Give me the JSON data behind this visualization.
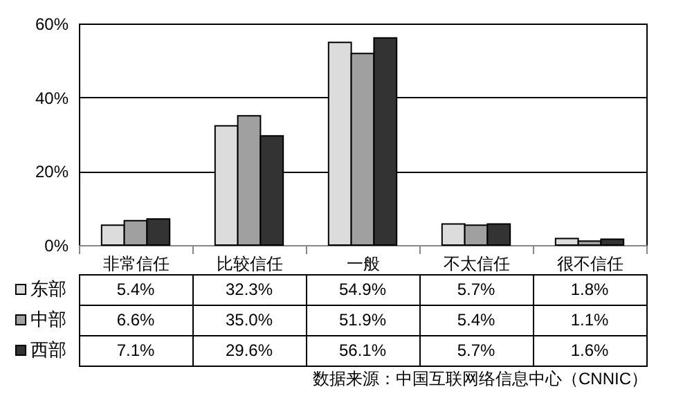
{
  "chart_data": {
    "type": "bar",
    "categories": [
      "非常信任",
      "比较信任",
      "一般",
      "不太信任",
      "很不信任"
    ],
    "series": [
      {
        "name": "东部",
        "color": "#dcdcdc",
        "values": [
          5.4,
          32.3,
          54.9,
          5.7,
          1.8
        ],
        "value_labels": [
          "5.4%",
          "32.3%",
          "54.9%",
          "5.7%",
          "1.8%"
        ]
      },
      {
        "name": "中部",
        "color": "#a0a0a0",
        "values": [
          6.6,
          35.0,
          51.9,
          5.4,
          1.1
        ],
        "value_labels": [
          "6.6%",
          "35.0%",
          "51.9%",
          "5.4%",
          "1.1%"
        ]
      },
      {
        "name": "西部",
        "color": "#333333",
        "values": [
          7.1,
          29.6,
          56.1,
          5.7,
          1.6
        ],
        "value_labels": [
          "7.1%",
          "29.6%",
          "56.1%",
          "5.7%",
          "1.6%"
        ]
      }
    ],
    "ylim": [
      0,
      60
    ],
    "yticks": [
      {
        "value": 0,
        "label": "0%"
      },
      {
        "value": 20,
        "label": "20%"
      },
      {
        "value": 40,
        "label": "40%"
      },
      {
        "value": 60,
        "label": "60%"
      }
    ],
    "grid": "y",
    "legend": "bottom",
    "annotations": [
      "数据来源：中国互联网络信息中心（CNNIC）"
    ]
  }
}
